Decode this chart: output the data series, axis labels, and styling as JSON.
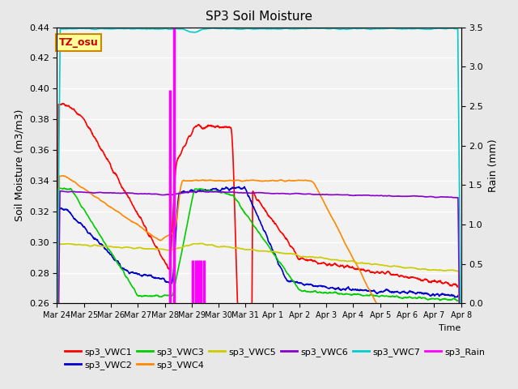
{
  "title": "SP3 Soil Moisture",
  "xlabel": "Time",
  "ylabel_left": "Soil Moisture (m3/m3)",
  "ylabel_right": "Rain (mm)",
  "ylim_left": [
    0.26,
    0.44
  ],
  "ylim_right": [
    0.0,
    3.5
  ],
  "background_color": "#e8e8e8",
  "plot_bg_color": "#f2f2f2",
  "annotation_text": "TZ_osu",
  "annotation_color": "#cc0000",
  "annotation_bg": "#ffff99",
  "annotation_border": "#cc8800",
  "colors": {
    "vwc1": "#ff0000",
    "vwc2": "#0000cc",
    "vwc3": "#00cc00",
    "vwc4": "#ff8800",
    "vwc5": "#cccc00",
    "vwc6": "#8800cc",
    "vwc7": "#00cccc",
    "rain": "#ff00ff"
  },
  "xtick_labels": [
    "Mar 24",
    "Mar 25",
    "Mar 26",
    "Mar 27",
    "Mar 28",
    "Mar 29",
    "Mar 30",
    "Mar 31",
    "Apr 1",
    "Apr 2",
    "Apr 3",
    "Apr 4",
    "Apr 5",
    "Apr 6",
    "Apr 7",
    "Apr 8"
  ],
  "ytick_left": [
    0.26,
    0.28,
    0.3,
    0.32,
    0.34,
    0.36,
    0.38,
    0.4,
    0.42,
    0.44
  ],
  "ytick_right": [
    0.0,
    0.5,
    1.0,
    1.5,
    2.0,
    2.5,
    3.0,
    3.5
  ],
  "rain_times": [
    4.2,
    4.35,
    5.05,
    5.15,
    5.25,
    5.35,
    5.45
  ],
  "rain_vals": [
    2.7,
    3.5,
    0.55,
    0.55,
    0.55,
    0.55,
    0.55
  ]
}
